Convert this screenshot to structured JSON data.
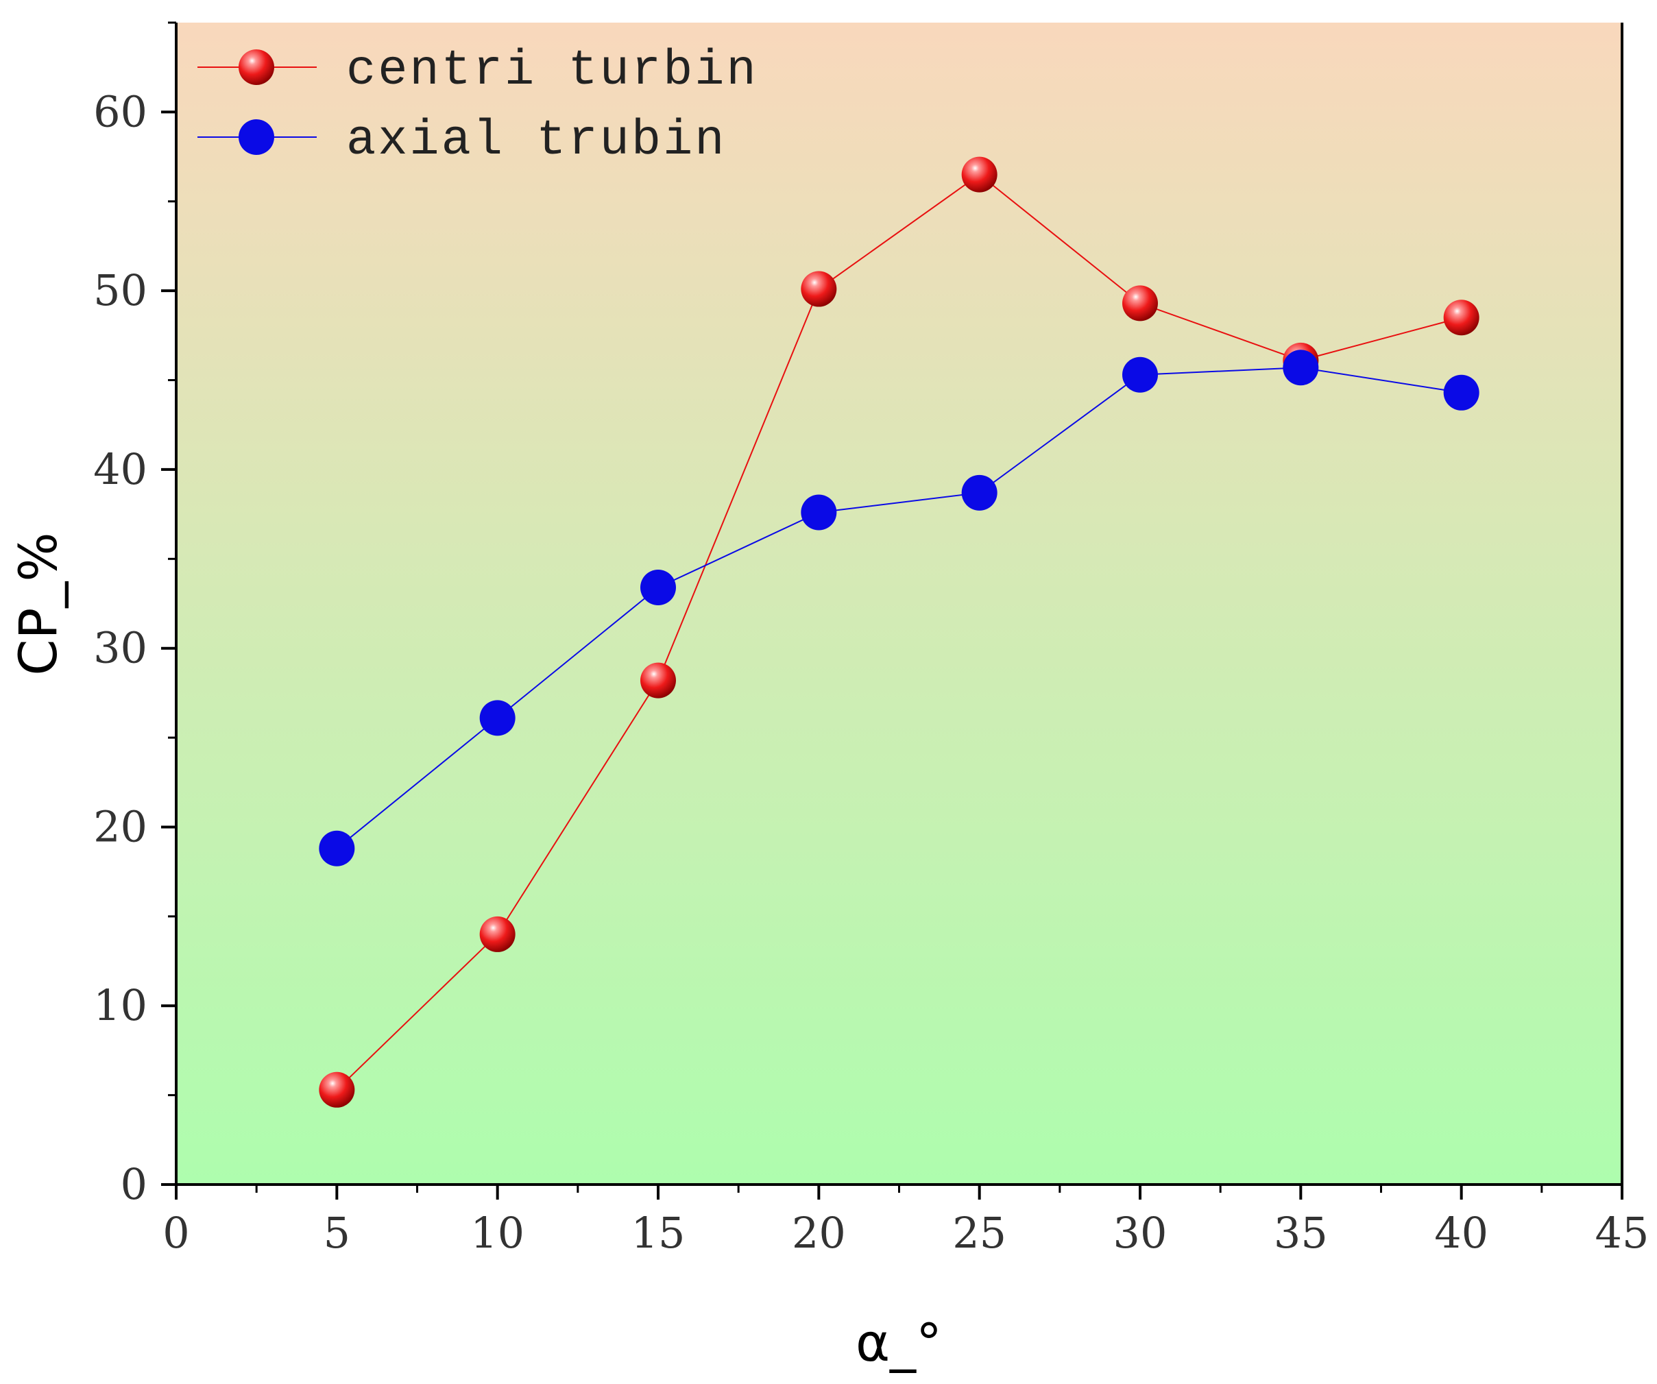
{
  "chart_data": {
    "type": "line",
    "title": "",
    "xlabel": "α_°",
    "ylabel": "CP_%",
    "xlim": [
      0,
      45
    ],
    "ylim": [
      0,
      65
    ],
    "x_ticks": [
      0,
      5,
      10,
      15,
      20,
      25,
      30,
      35,
      40,
      45
    ],
    "y_ticks": [
      0,
      10,
      20,
      30,
      40,
      50,
      60
    ],
    "grid": false,
    "legend_position": "top-left",
    "background": {
      "top": "#F9D8BC",
      "bottom": "#AEFDAE"
    },
    "x": [
      5,
      10,
      15,
      20,
      25,
      30,
      35,
      40
    ],
    "series": [
      {
        "name": "centri turbin",
        "color": "#E81010",
        "marker": "sphere",
        "values": [
          5.3,
          14.0,
          28.2,
          50.1,
          56.5,
          49.3,
          46.1,
          48.5
        ]
      },
      {
        "name": "axial trubin",
        "color": "#0A0AE6",
        "marker": "circle",
        "values": [
          18.8,
          26.1,
          33.4,
          37.6,
          38.7,
          45.3,
          45.7,
          44.3
        ]
      }
    ]
  }
}
